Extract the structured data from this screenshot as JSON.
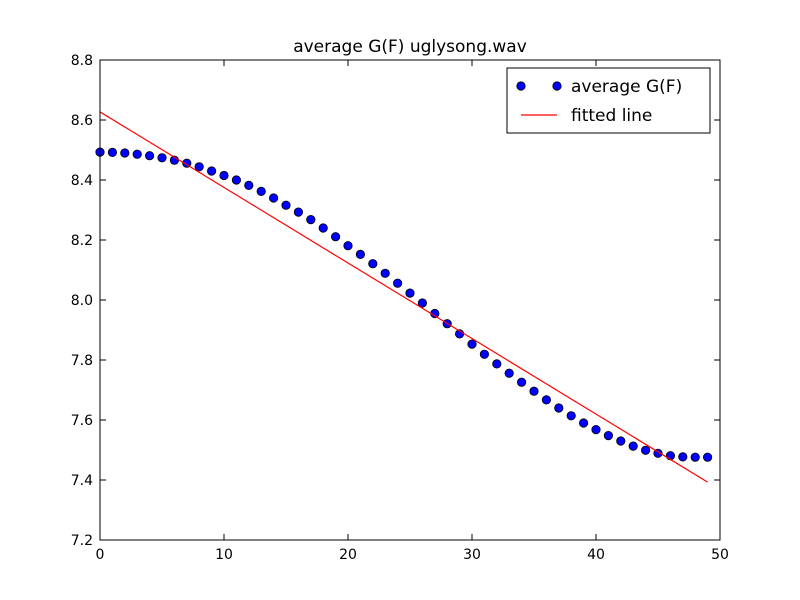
{
  "chart_data": {
    "type": "scatter",
    "title": "average G(F) uglysong.wav",
    "xlabel": "",
    "ylabel": "",
    "xlim": [
      0,
      50
    ],
    "ylim": [
      7.2,
      8.8
    ],
    "xticks": [
      0,
      10,
      20,
      30,
      40,
      50
    ],
    "xtick_labels": [
      "0",
      "10",
      "20",
      "30",
      "40",
      "50"
    ],
    "yticks": [
      7.2,
      7.4,
      7.6,
      7.8,
      8.0,
      8.2,
      8.4,
      8.6,
      8.8
    ],
    "ytick_labels": [
      "7.2",
      "7.4",
      "7.6",
      "7.8",
      "8.0",
      "8.2",
      "8.4",
      "8.6",
      "8.8"
    ],
    "grid": false,
    "legend_position": "top-right",
    "series": [
      {
        "name": "average G(F)",
        "kind": "markers",
        "color": "#0000ff",
        "x": [
          0,
          1,
          2,
          3,
          4,
          5,
          6,
          7,
          8,
          9,
          10,
          11,
          12,
          13,
          14,
          15,
          16,
          17,
          18,
          19,
          20,
          21,
          22,
          23,
          24,
          25,
          26,
          27,
          28,
          29,
          30,
          31,
          32,
          33,
          34,
          35,
          36,
          37,
          38,
          39,
          40,
          41,
          42,
          43,
          44,
          45,
          46,
          47,
          48,
          49
        ],
        "y": [
          8.493,
          8.492,
          8.49,
          8.486,
          8.481,
          8.474,
          8.466,
          8.456,
          8.444,
          8.43,
          8.415,
          8.4,
          8.382,
          8.362,
          8.34,
          8.316,
          8.293,
          8.268,
          8.24,
          8.211,
          8.181,
          8.152,
          8.121,
          8.089,
          8.056,
          8.023,
          7.99,
          7.955,
          7.921,
          7.887,
          7.853,
          7.819,
          7.787,
          7.756,
          7.726,
          7.696,
          7.667,
          7.64,
          7.614,
          7.59,
          7.568,
          7.548,
          7.53,
          7.513,
          7.499,
          7.489,
          7.481,
          7.477,
          7.476,
          7.476
        ]
      },
      {
        "name": "fitted line",
        "kind": "line",
        "color": "#ff0000",
        "x": [
          0,
          49
        ],
        "y": [
          8.627,
          7.393
        ]
      }
    ]
  }
}
